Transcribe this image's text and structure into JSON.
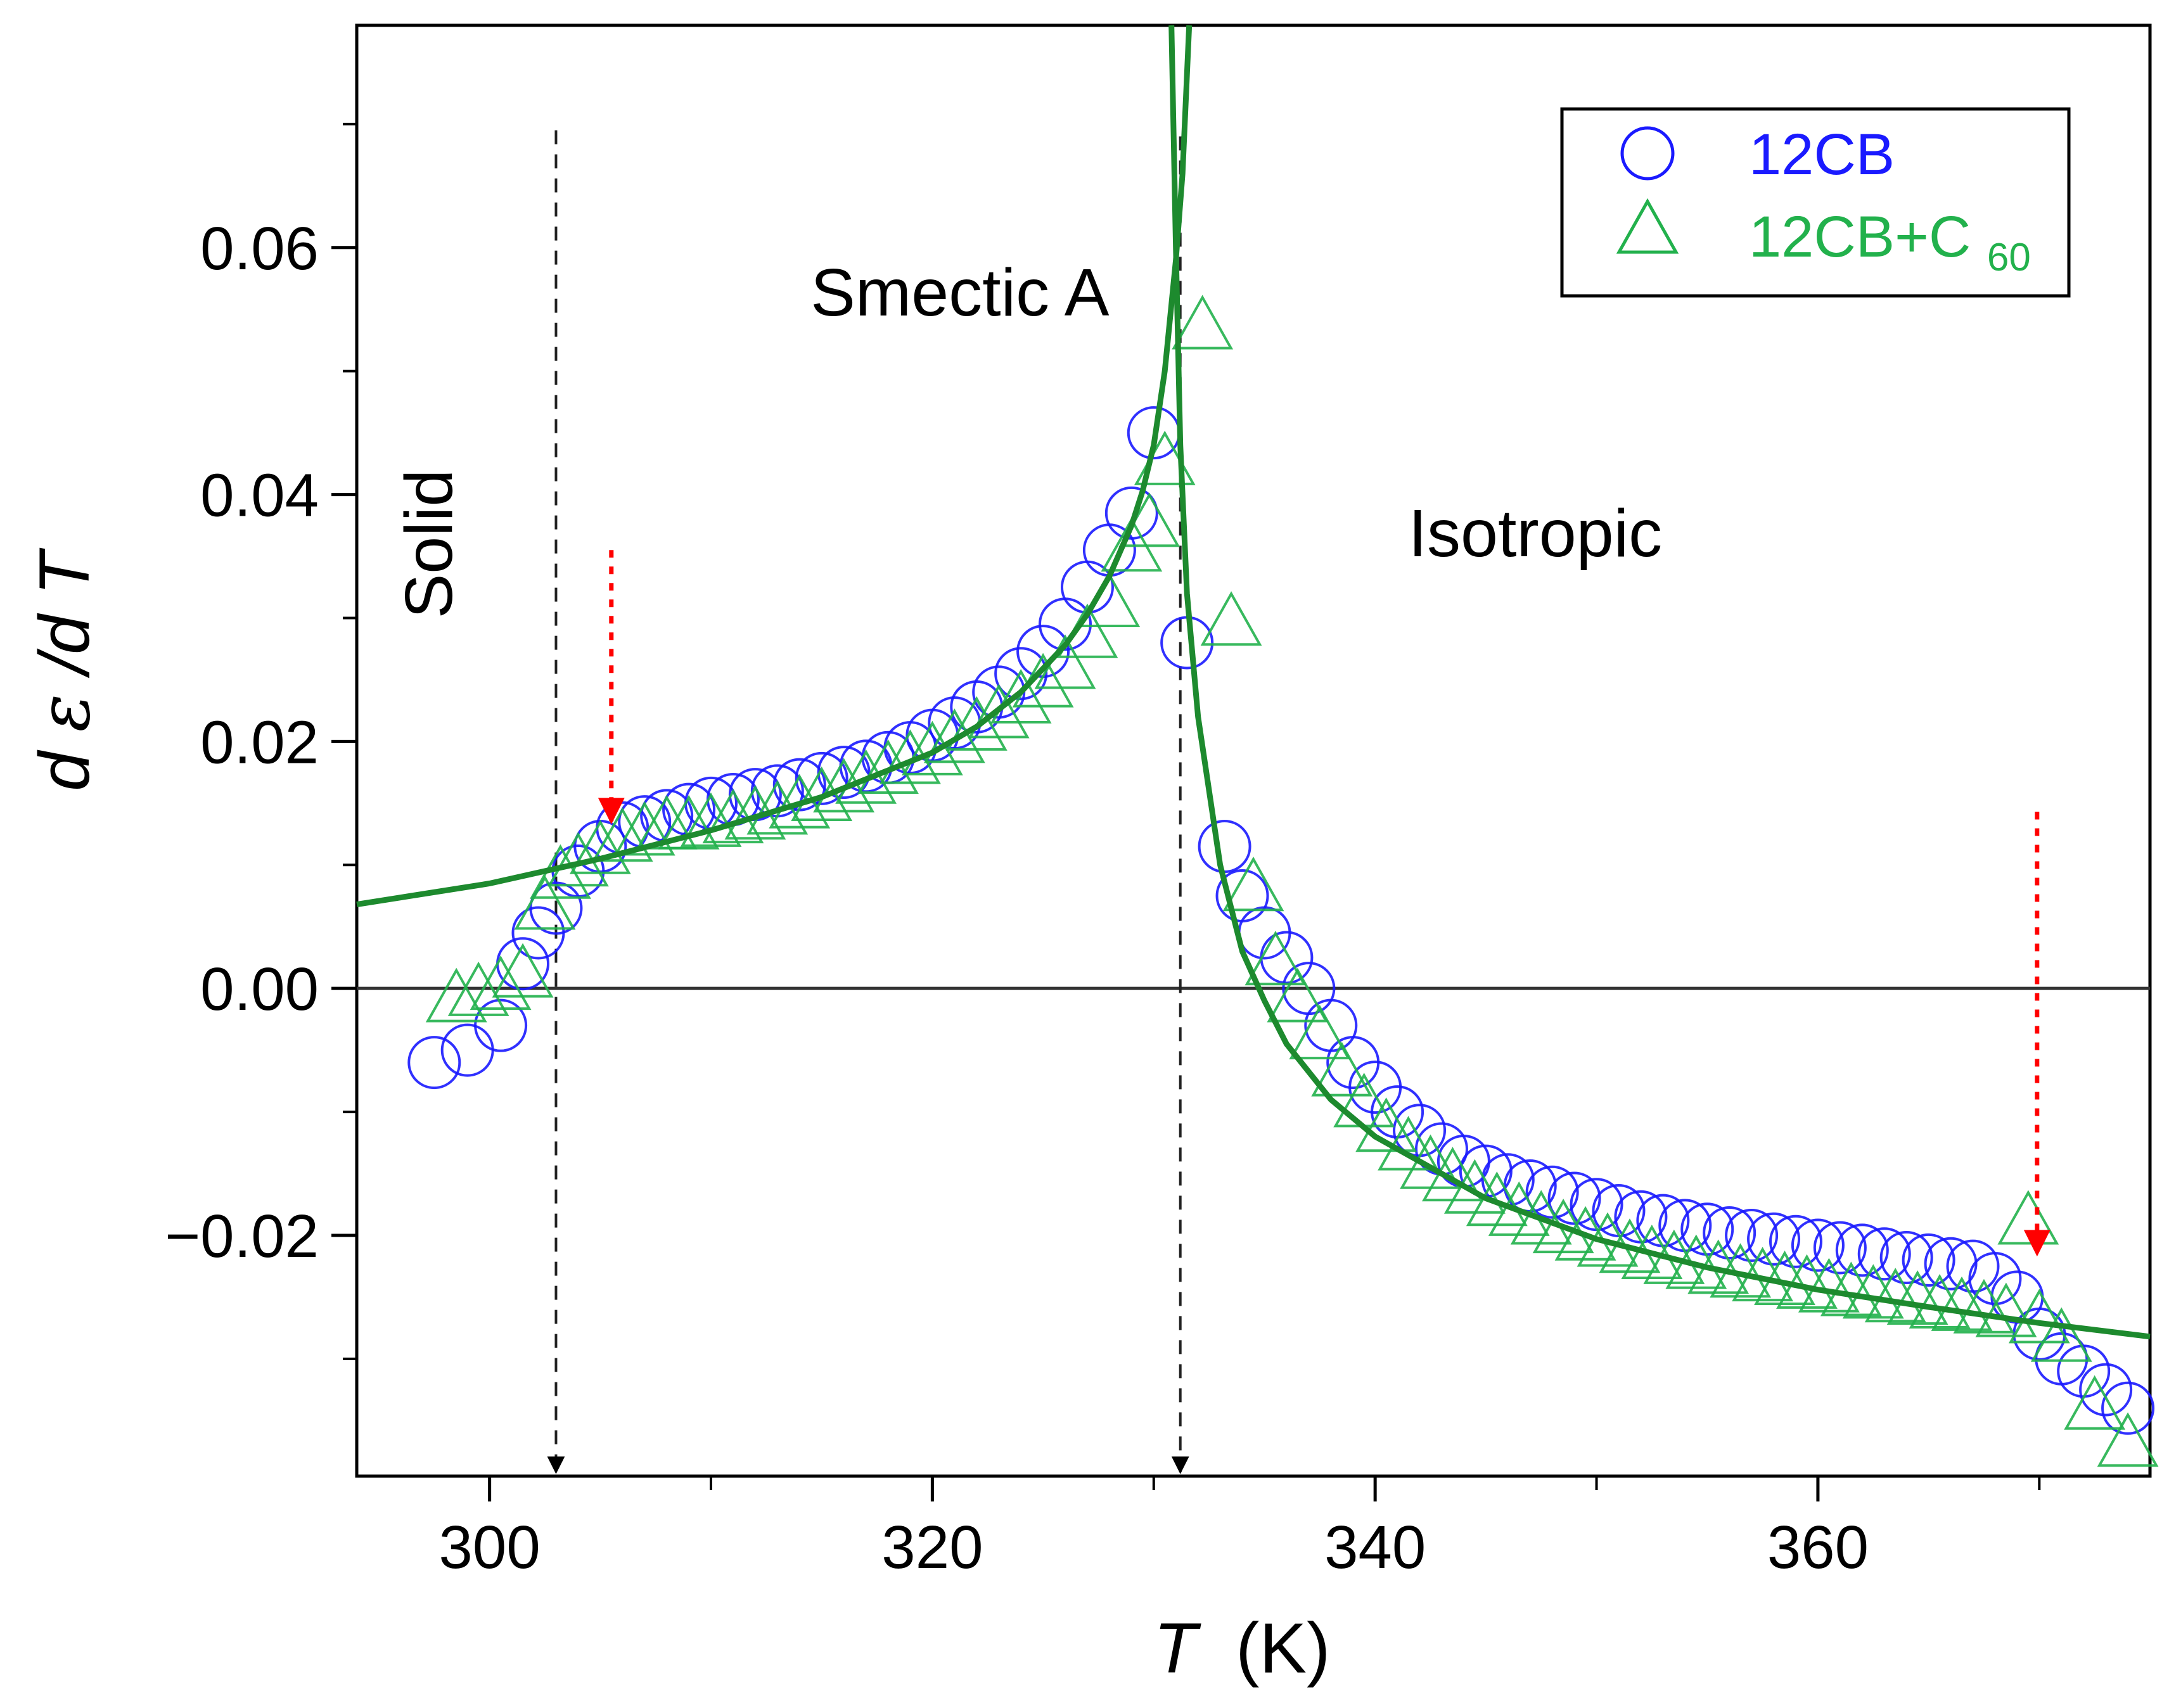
{
  "chart_data": {
    "type": "scatter",
    "title": "",
    "xlabel": {
      "var": "T",
      "unit": "(K)"
    },
    "ylabel": {
      "d": "d",
      "eps": "ε",
      "slash": "/d",
      "T": "T"
    },
    "xlim": [
      294,
      375
    ],
    "ylim": [
      -0.0395,
      0.078
    ],
    "x_ticks": [
      300,
      320,
      340,
      360
    ],
    "x_tick_labels": [
      "300",
      "320",
      "340",
      "360"
    ],
    "y_ticks": [
      -0.02,
      0.0,
      0.02,
      0.04,
      0.06
    ],
    "y_tick_labels": [
      "−0.02",
      "0.00",
      "0.02",
      "0.04",
      "0.06"
    ],
    "legend": {
      "position": "top-right",
      "entries": [
        {
          "label": "12CB",
          "marker": "circle",
          "color": "#1a1aff"
        },
        {
          "label_main": "12CB+C",
          "label_sub": "60",
          "marker": "triangle",
          "color": "#22b14c"
        }
      ]
    },
    "regions": [
      {
        "label": "Smectic A",
        "x": 314.5,
        "y": 0.0545
      },
      {
        "label": "Solid",
        "x": 298.3,
        "y": 0.036,
        "rotated": true
      },
      {
        "label": "Isotropic",
        "x": 341.5,
        "y": 0.035
      }
    ],
    "transitions": [
      {
        "x": 303.0,
        "y_top": 0.0695,
        "y_bottom": -0.0395
      },
      {
        "x": 331.2,
        "y_top": 0.069,
        "y_bottom": -0.0395
      }
    ],
    "arrows": [
      {
        "x": 305.5,
        "y_from": 0.0355,
        "y_to": 0.0135
      },
      {
        "x": 369.9,
        "y_from": 0.0143,
        "y_to": -0.0215
      }
    ],
    "fit_curves": [
      {
        "name": "smectic-fit",
        "x": [
          294.0,
          300.0,
          305.0,
          310.0,
          315.0,
          320.0,
          322.0,
          324.0,
          326.0,
          327.0,
          328.0,
          329.0,
          329.5,
          330.0,
          330.5,
          331.0,
          331.3,
          331.6
        ],
        "y": [
          0.0068,
          0.0085,
          0.0105,
          0.0128,
          0.0155,
          0.0191,
          0.0212,
          0.024,
          0.0278,
          0.0303,
          0.0334,
          0.0375,
          0.0403,
          0.044,
          0.05,
          0.059,
          0.066,
          0.078
        ]
      },
      {
        "name": "isotropic-fit",
        "x": [
          330.8,
          331.0,
          331.2,
          331.5,
          332.0,
          333.0,
          334.0,
          335.0,
          336.0,
          338.0,
          340.0,
          345.0,
          350.0,
          355.0,
          360.0,
          365.0,
          370.0,
          375.0
        ],
        "y": [
          0.078,
          0.06,
          0.044,
          0.032,
          0.022,
          0.01,
          0.003,
          -0.001,
          -0.0045,
          -0.009,
          -0.012,
          -0.017,
          -0.0203,
          -0.0226,
          -0.0244,
          -0.0258,
          -0.0271,
          -0.0282
        ]
      }
    ],
    "series": [
      {
        "name": "12CB",
        "marker": "circle",
        "x": [
          297.5,
          299.0,
          300.5,
          301.5,
          302.2,
          303.0,
          304.0,
          305.0,
          306.0,
          307.0,
          308.0,
          309.0,
          310.0,
          311.0,
          312.0,
          313.0,
          314.0,
          315.0,
          316.0,
          317.0,
          318.0,
          319.0,
          320.0,
          321.0,
          322.0,
          323.0,
          324.0,
          325.0,
          326.0,
          327.0,
          328.0,
          329.0,
          330.0,
          331.5,
          333.2,
          334.0,
          335.0,
          336.0,
          337.0,
          338.0,
          339.0,
          340.0,
          341.0,
          342.0,
          343.0,
          344.0,
          345.0,
          346.0,
          347.0,
          348.0,
          349.0,
          350.0,
          351.0,
          352.0,
          353.0,
          354.0,
          355.0,
          356.0,
          357.0,
          358.0,
          359.0,
          360.0,
          361.0,
          362.0,
          363.0,
          364.0,
          365.0,
          366.0,
          367.0,
          368.0,
          369.0,
          370.0,
          371.0,
          372.0,
          373.0,
          374.0
        ],
        "y": [
          -0.006,
          -0.005,
          -0.003,
          0.002,
          0.0045,
          0.0065,
          0.0095,
          0.0115,
          0.013,
          0.0135,
          0.014,
          0.0145,
          0.015,
          0.0153,
          0.0157,
          0.016,
          0.0165,
          0.017,
          0.0175,
          0.018,
          0.0187,
          0.0195,
          0.0205,
          0.0215,
          0.0228,
          0.024,
          0.0255,
          0.0273,
          0.0295,
          0.0325,
          0.0355,
          0.0385,
          0.045,
          0.028,
          0.0115,
          0.0075,
          0.0045,
          0.0025,
          0.0,
          -0.003,
          -0.006,
          -0.008,
          -0.01,
          -0.0115,
          -0.013,
          -0.014,
          -0.0148,
          -0.0155,
          -0.016,
          -0.0165,
          -0.017,
          -0.0175,
          -0.018,
          -0.0185,
          -0.0188,
          -0.0192,
          -0.0195,
          -0.0198,
          -0.02,
          -0.0203,
          -0.0205,
          -0.0208,
          -0.021,
          -0.0212,
          -0.0215,
          -0.0218,
          -0.022,
          -0.0223,
          -0.0225,
          -0.0235,
          -0.025,
          -0.028,
          -0.03,
          -0.031,
          -0.0325,
          -0.034
        ]
      },
      {
        "name": "12CB+C60",
        "marker": "triangle",
        "x": [
          298.5,
          299.5,
          300.5,
          301.5,
          302.5,
          303.2,
          304.0,
          305.0,
          306.0,
          307.0,
          308.0,
          309.0,
          310.0,
          311.0,
          312.0,
          313.0,
          314.0,
          315.0,
          316.0,
          317.0,
          318.0,
          319.0,
          320.0,
          321.0,
          322.0,
          323.0,
          324.0,
          325.0,
          326.0,
          327.0,
          328.0,
          329.0,
          329.8,
          330.5,
          332.2,
          333.5,
          334.5,
          335.5,
          336.5,
          337.5,
          338.5,
          339.5,
          340.5,
          341.5,
          342.5,
          343.5,
          344.5,
          345.5,
          346.5,
          347.5,
          348.5,
          349.5,
          350.5,
          351.5,
          352.5,
          353.5,
          354.5,
          355.5,
          356.5,
          357.5,
          358.5,
          359.5,
          360.5,
          361.5,
          362.5,
          363.5,
          364.5,
          365.5,
          366.5,
          367.5,
          368.5,
          369.5,
          370.0,
          371.0,
          372.5,
          374.0
        ],
        "y": [
          -0.001,
          -0.0005,
          0.0,
          0.001,
          0.0065,
          0.009,
          0.01,
          0.011,
          0.012,
          0.0125,
          0.013,
          0.013,
          0.0132,
          0.0135,
          0.0138,
          0.0142,
          0.0147,
          0.0153,
          0.016,
          0.0167,
          0.0175,
          0.0183,
          0.019,
          0.02,
          0.021,
          0.022,
          0.0232,
          0.0245,
          0.026,
          0.0285,
          0.031,
          0.0355,
          0.0375,
          0.0425,
          0.0535,
          0.0295,
          0.008,
          0.002,
          -0.001,
          -0.004,
          -0.007,
          -0.0095,
          -0.0115,
          -0.013,
          -0.0145,
          -0.0155,
          -0.0165,
          -0.0175,
          -0.0183,
          -0.019,
          -0.0197,
          -0.0203,
          -0.0208,
          -0.0213,
          -0.0218,
          -0.0222,
          -0.0226,
          -0.023,
          -0.0233,
          -0.0236,
          -0.0239,
          -0.0242,
          -0.0245,
          -0.0248,
          -0.025,
          -0.0253,
          -0.0255,
          -0.0258,
          -0.026,
          -0.0262,
          -0.0265,
          -0.019,
          -0.027,
          -0.0285,
          -0.034,
          -0.037
        ]
      }
    ]
  }
}
